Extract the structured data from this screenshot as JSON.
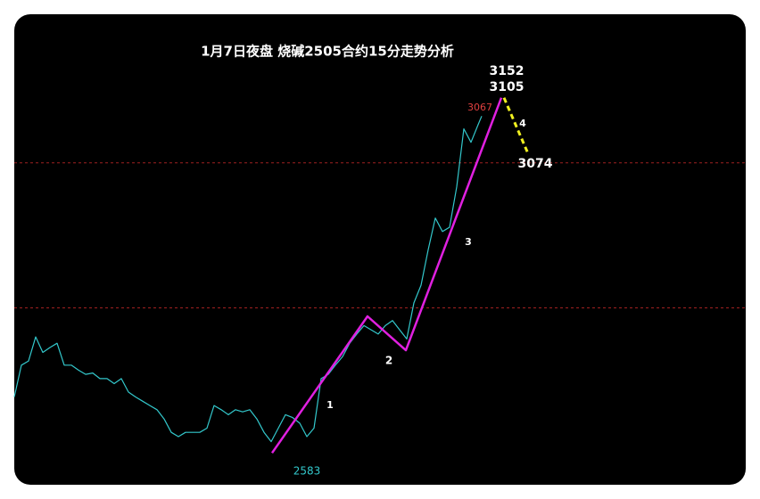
{
  "chart_data": {
    "type": "line",
    "title": "1月7日夜盘   烧碱2505合约15分走势分析",
    "xlim": [
      0,
      205
    ],
    "ylim": [
      2543,
      3208
    ],
    "series": [
      {
        "name": "price",
        "color": "#33c8cc",
        "x": [
          0,
          2,
          4,
          6,
          8,
          10,
          12,
          14,
          16,
          18,
          20,
          22,
          24,
          26,
          28,
          30,
          32,
          34,
          36,
          38,
          40,
          42,
          44,
          46,
          48,
          50,
          52,
          54,
          56,
          58,
          60,
          62,
          64,
          66,
          68,
          70,
          72,
          74,
          76,
          78,
          80,
          82,
          84,
          86,
          88,
          90,
          92,
          94,
          96,
          98,
          100,
          102,
          104,
          106,
          108,
          110,
          112,
          114,
          116,
          118,
          120,
          122,
          124,
          126,
          128,
          130,
          131
        ],
        "values": [
          2667,
          2712,
          2718,
          2752,
          2730,
          2737,
          2743,
          2712,
          2712,
          2705,
          2699,
          2701,
          2693,
          2693,
          2686,
          2693,
          2674,
          2667,
          2661,
          2655,
          2649,
          2636,
          2617,
          2611,
          2617,
          2617,
          2617,
          2623,
          2655,
          2649,
          2642,
          2649,
          2646,
          2649,
          2636,
          2617,
          2604,
          2623,
          2642,
          2638,
          2630,
          2611,
          2623,
          2693,
          2699,
          2712,
          2724,
          2743,
          2756,
          2768,
          2762,
          2756,
          2768,
          2775,
          2762,
          2749,
          2800,
          2825,
          2875,
          2920,
          2901,
          2907,
          2964,
          3046,
          3027,
          3052,
          3064
        ]
      },
      {
        "name": "wave",
        "color": "#e020e0",
        "x": [
          72.25,
          99,
          109.75,
          136.5
        ],
        "values": [
          2588,
          2781,
          2733,
          3090
        ]
      },
      {
        "name": "projection",
        "color": "#f0f020",
        "dashed": true,
        "x": [
          137.25,
          144
        ],
        "values": [
          3090,
          3011
        ]
      }
    ],
    "hlines": [
      2998,
      2793
    ],
    "hline_color": "#a02020",
    "annotations": [
      {
        "text": "3152",
        "color": "#ffffff"
      },
      {
        "text": "3105",
        "color": "#ffffff"
      },
      {
        "text": "3067",
        "color": "#e04040"
      },
      {
        "text": "4",
        "color": "#ffffff"
      },
      {
        "text": "3074",
        "color": "#ffffff"
      },
      {
        "text": "3",
        "color": "#ffffff"
      },
      {
        "text": "2",
        "color": "#ffffff"
      },
      {
        "text": "1",
        "color": "#ffffff"
      },
      {
        "text": "2583",
        "color": "#33c8cc"
      }
    ]
  }
}
